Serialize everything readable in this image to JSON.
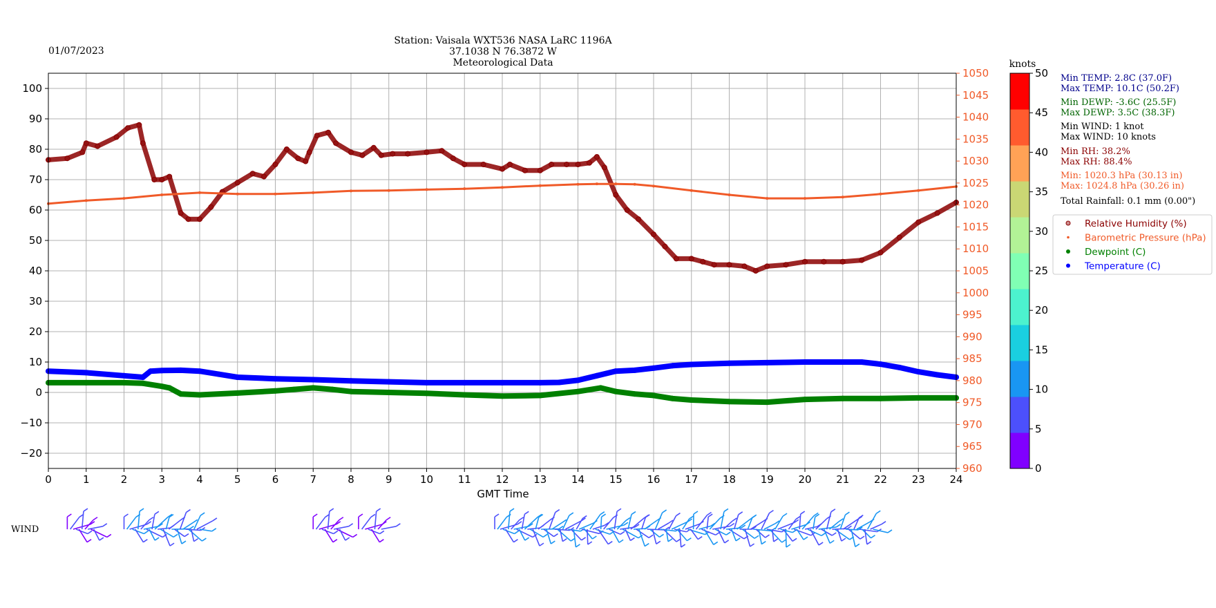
{
  "header": {
    "date": "01/07/2023",
    "title_lines": [
      "Station:  Vaisala WXT536  NASA LaRC 1196A",
      "37.1038 N 76.3872 W",
      "Meteorological Data"
    ]
  },
  "colors": {
    "title_green": "#006400",
    "humidity": "#8b0000",
    "pressure": "#f05a28",
    "dewpoint": "#008000",
    "temperature": "#0000ff",
    "grid": "#b0b0b0",
    "stats_temp": "#00008b",
    "stats_dewp": "#006400",
    "stats_wind": "#000000",
    "stats_rh": "#8b0000",
    "stats_press": "#f05a28"
  },
  "chart_data": {
    "type": "scatter",
    "xlabel": "GMT Time",
    "xlim": [
      0,
      24
    ],
    "x_ticks": [
      "0",
      "1",
      "2",
      "3",
      "4",
      "5",
      "6",
      "7",
      "8",
      "9",
      "10",
      "11",
      "12",
      "13",
      "14",
      "15",
      "16",
      "17",
      "18",
      "19",
      "20",
      "21",
      "22",
      "23",
      "24"
    ],
    "y_left": {
      "ylim": [
        -25,
        105
      ],
      "ticks": [
        "−20",
        "−10",
        "0",
        "10",
        "20",
        "30",
        "40",
        "50",
        "60",
        "70",
        "80",
        "90",
        "100"
      ]
    },
    "y_right": {
      "ylim": [
        960,
        1050
      ],
      "ticks": [
        "960",
        "965",
        "970",
        "975",
        "980",
        "985",
        "990",
        "995",
        "1000",
        "1005",
        "1010",
        "1015",
        "1020",
        "1025",
        "1030",
        "1035",
        "1040",
        "1045",
        "1050"
      ]
    },
    "grid": true,
    "legend_position": "right",
    "series": [
      {
        "name": "Relative Humidity (%)",
        "axis": "left",
        "style": "open-circle",
        "x": [
          0,
          0.5,
          0.9,
          1.0,
          1.3,
          1.8,
          2.1,
          2.4,
          2.5,
          2.8,
          3.0,
          3.2,
          3.5,
          3.7,
          4.0,
          4.3,
          4.6,
          5.0,
          5.4,
          5.7,
          6.0,
          6.3,
          6.6,
          6.8,
          6.9,
          7.1,
          7.4,
          7.6,
          8.0,
          8.3,
          8.6,
          8.8,
          9.1,
          9.5,
          10.0,
          10.4,
          10.7,
          11.0,
          11.5,
          12.0,
          12.2,
          12.6,
          13.0,
          13.3,
          13.7,
          14.0,
          14.3,
          14.5,
          14.7,
          15.0,
          15.3,
          15.6,
          16.0,
          16.3,
          16.6,
          17.0,
          17.3,
          17.6,
          18.0,
          18.4,
          18.7,
          19.0,
          19.5,
          20.0,
          20.5,
          21.0,
          21.5,
          22.0,
          22.5,
          23.0,
          23.5,
          24.0
        ],
        "values": [
          76.5,
          77,
          79,
          82,
          81,
          84,
          87,
          88,
          82,
          70,
          70,
          71,
          59,
          57,
          57,
          61,
          66,
          69,
          72,
          71,
          75,
          80,
          77,
          76,
          79,
          84.5,
          85.5,
          82,
          79,
          78,
          80.5,
          78,
          78.5,
          78.5,
          79,
          79.5,
          77,
          75,
          75,
          73.5,
          75,
          73,
          73,
          75,
          75,
          75,
          75.5,
          77.5,
          74,
          65,
          60,
          57,
          52,
          48,
          44,
          44,
          43,
          42,
          42,
          41.5,
          40,
          41.5,
          42,
          43,
          43,
          43,
          43.5,
          46,
          51,
          56,
          59,
          62.5
        ]
      },
      {
        "name": "Barometric Pressure (hPa)",
        "axis": "right",
        "style": "dot",
        "x": [
          0,
          1,
          2,
          3,
          4,
          5,
          6,
          7,
          8,
          9,
          10,
          11,
          12,
          13,
          14,
          14.5,
          15,
          15.5,
          16,
          17,
          18,
          19,
          20,
          21,
          22,
          23,
          24
        ],
        "values": [
          1020.3,
          1021,
          1021.5,
          1022.3,
          1022.8,
          1022.5,
          1022.5,
          1022.8,
          1023.2,
          1023.3,
          1023.5,
          1023.7,
          1024,
          1024.4,
          1024.7,
          1024.8,
          1024.8,
          1024.7,
          1024.3,
          1023.3,
          1022.3,
          1021.5,
          1021.5,
          1021.8,
          1022.5,
          1023.3,
          1024.2
        ]
      },
      {
        "name": "Dewpoint (C)",
        "axis": "left",
        "style": "filled",
        "x": [
          0,
          1,
          2,
          2.5,
          3.0,
          3.2,
          3.5,
          4.0,
          5.0,
          6.0,
          6.5,
          7.0,
          7.5,
          8.0,
          9.0,
          10.0,
          11.0,
          12.0,
          13.0,
          14.0,
          14.6,
          15.0,
          15.5,
          16.0,
          16.5,
          17.0,
          18.0,
          19.0,
          20.0,
          21.0,
          22.0,
          23.0,
          24.0
        ],
        "values": [
          3.2,
          3.2,
          3.2,
          3,
          2,
          1.5,
          -0.5,
          -0.8,
          -0.2,
          0.5,
          1,
          1.5,
          1,
          0.3,
          0,
          -0.3,
          -0.8,
          -1.2,
          -1,
          0.3,
          1.5,
          0.3,
          -0.5,
          -1,
          -2,
          -2.5,
          -3,
          -3.2,
          -2.3,
          -2,
          -2,
          -1.8,
          -1.8
        ]
      },
      {
        "name": "Temperature (C)",
        "axis": "left",
        "style": "filled",
        "x": [
          0,
          1,
          2,
          2.5,
          2.7,
          3.0,
          3.5,
          4.0,
          4.5,
          5.0,
          6.0,
          7.0,
          8.0,
          9.0,
          10.0,
          11.0,
          12.0,
          13.0,
          13.5,
          14.0,
          14.5,
          15.0,
          15.5,
          16.0,
          16.5,
          17.0,
          18.0,
          19.0,
          20.0,
          21.0,
          21.5,
          22.0,
          22.5,
          23.0,
          23.5,
          24.0
        ],
        "values": [
          7,
          6.5,
          5.5,
          5,
          7,
          7.2,
          7.3,
          7,
          6,
          5,
          4.5,
          4.2,
          3.8,
          3.5,
          3.2,
          3.2,
          3.2,
          3.2,
          3.3,
          4,
          5.5,
          7,
          7.3,
          8,
          8.8,
          9.2,
          9.6,
          9.8,
          10,
          10,
          10,
          9.3,
          8.2,
          6.8,
          5.8,
          5
        ]
      }
    ]
  },
  "colorbar": {
    "label": "knots",
    "range": [
      0,
      50
    ],
    "tick_labels": [
      "0",
      "5",
      "10",
      "15",
      "20",
      "25",
      "30",
      "35",
      "40",
      "45",
      "50"
    ],
    "bin_colors": [
      "#8000ff",
      "#4c50fc",
      "#1996f3",
      "#1acfe0",
      "#4cf2ce",
      "#80ffb4",
      "#b2f296",
      "#cad774",
      "#ffa256",
      "#ff5b2e",
      "#ff0000"
    ]
  },
  "stats": [
    {
      "text": "Min TEMP: 2.8C (37.0F)",
      "color": "#00008b"
    },
    {
      "text": "Max TEMP: 10.1C (50.2F)",
      "color": "#00008b"
    },
    {
      "text": "Min DEWP: -3.6C (25.5F)",
      "color": "#006400"
    },
    {
      "text": "Max DEWP: 3.5C (38.3F)",
      "color": "#006400"
    },
    {
      "text": "Min WIND: 1 knot",
      "color": "#000000"
    },
    {
      "text": "Max WIND: 10 knots",
      "color": "#000000"
    },
    {
      "text": "Min RH: 38.2%",
      "color": "#8b0000"
    },
    {
      "text": "Max RH: 88.4%",
      "color": "#8b0000"
    },
    {
      "text": "Min: 1020.3 hPa (30.13 in)",
      "color": "#f05a28"
    },
    {
      "text": "Max: 1024.8 hPa (30.26 in)",
      "color": "#f05a28"
    },
    {
      "text": "Total Rainfall: 0.1 mm (0.00\")",
      "color": "#000000"
    }
  ],
  "wind": {
    "label": "WIND",
    "segments": [
      {
        "x_start": 0.5,
        "x_end": 1.2,
        "speed": 3
      },
      {
        "x_start": 2.0,
        "x_end": 4.0,
        "speed": 8
      },
      {
        "x_start": 7.0,
        "x_end": 7.7,
        "speed": 3
      },
      {
        "x_start": 8.2,
        "x_end": 8.8,
        "speed": 2
      },
      {
        "x_start": 11.8,
        "x_end": 21.8,
        "speed": 7
      }
    ]
  }
}
